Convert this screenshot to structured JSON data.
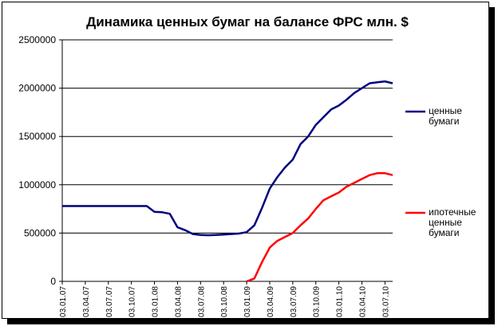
{
  "chart_data": {
    "type": "line",
    "title": "Динамика ценных бумаг на балансе ФРС млн. $",
    "categories": [
      "03.01.07",
      null,
      null,
      "03.04.07",
      null,
      null,
      "03.07.07",
      null,
      null,
      "03.10.07",
      null,
      null,
      "03.01.08",
      null,
      null,
      "03.04.08",
      null,
      null,
      "03.07.08",
      null,
      null,
      "03.10.08",
      null,
      null,
      "03.01.09",
      null,
      null,
      "03.04.09",
      null,
      null,
      "03.07.09",
      null,
      null,
      "03.10.09",
      null,
      null,
      "03.01.10",
      null,
      null,
      "03.04.10",
      null,
      null,
      "03.07.10",
      null
    ],
    "series": [
      {
        "name": "ценные бумаги",
        "color": "#000080",
        "values": [
          780000,
          780000,
          780000,
          780000,
          780000,
          780000,
          780000,
          780000,
          780000,
          780000,
          780000,
          780000,
          720000,
          715000,
          700000,
          560000,
          530000,
          490000,
          480000,
          478000,
          480000,
          485000,
          490000,
          495000,
          510000,
          580000,
          760000,
          960000,
          1080000,
          1180000,
          1260000,
          1420000,
          1500000,
          1620000,
          1700000,
          1780000,
          1820000,
          1880000,
          1950000,
          2000000,
          2050000,
          2060000,
          2070000,
          2050000
        ]
      },
      {
        "name": "ипотечные ценные бумаги",
        "color": "#ff0000",
        "values": [
          null,
          null,
          null,
          null,
          null,
          null,
          null,
          null,
          null,
          null,
          null,
          null,
          null,
          null,
          null,
          null,
          null,
          null,
          null,
          null,
          null,
          null,
          null,
          null,
          0,
          30000,
          200000,
          350000,
          420000,
          460000,
          500000,
          580000,
          650000,
          750000,
          840000,
          880000,
          920000,
          980000,
          1020000,
          1060000,
          1100000,
          1120000,
          1120000,
          1100000
        ]
      }
    ],
    "ylim": [
      0,
      2500000
    ],
    "yticks": [
      0,
      500000,
      1000000,
      1500000,
      2000000,
      2500000
    ],
    "grid": true,
    "legend": "right"
  }
}
